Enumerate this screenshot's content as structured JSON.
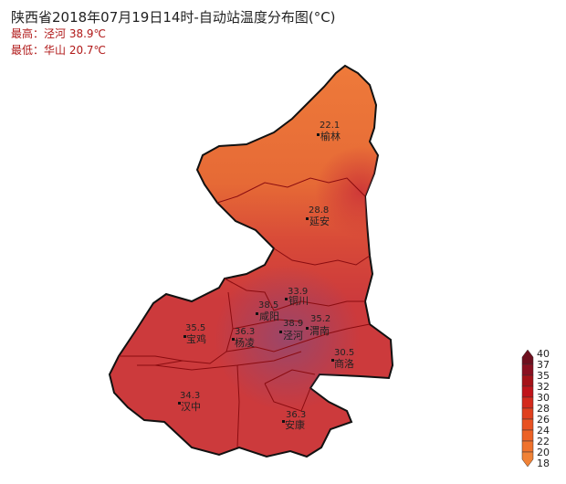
{
  "title": "陕西省2018年07月19日14时-自动站温度分布图(°C)",
  "max_line": "最高：泾河 38.9℃",
  "min_line": "最低：华山 20.7℃",
  "stations": [
    {
      "name": "榆林",
      "value": "22.1"
    },
    {
      "name": "延安",
      "value": "28.8"
    },
    {
      "name": "铜川",
      "value": "33.9"
    },
    {
      "name": "咸阳",
      "value": "38.5"
    },
    {
      "name": "泾河",
      "value": "38.9"
    },
    {
      "name": "渭南",
      "value": "35.2"
    },
    {
      "name": "宝鸡",
      "value": "35.5"
    },
    {
      "name": "杨凌",
      "value": "36.3"
    },
    {
      "name": "商洛",
      "value": "30.5"
    },
    {
      "name": "汉中",
      "value": "34.3"
    },
    {
      "name": "安康",
      "value": "36.3"
    }
  ],
  "legend": {
    "ticks": [
      "40",
      "37",
      "35",
      "32",
      "30",
      "28",
      "26",
      "24",
      "22",
      "20",
      "18"
    ],
    "colors": [
      "#6e0f1e",
      "#8a1020",
      "#a51218",
      "#c0141a",
      "#d42a1c",
      "#e0401e",
      "#e85222",
      "#ec6226",
      "#ef722c",
      "#f08236",
      "#f09040"
    ]
  }
}
